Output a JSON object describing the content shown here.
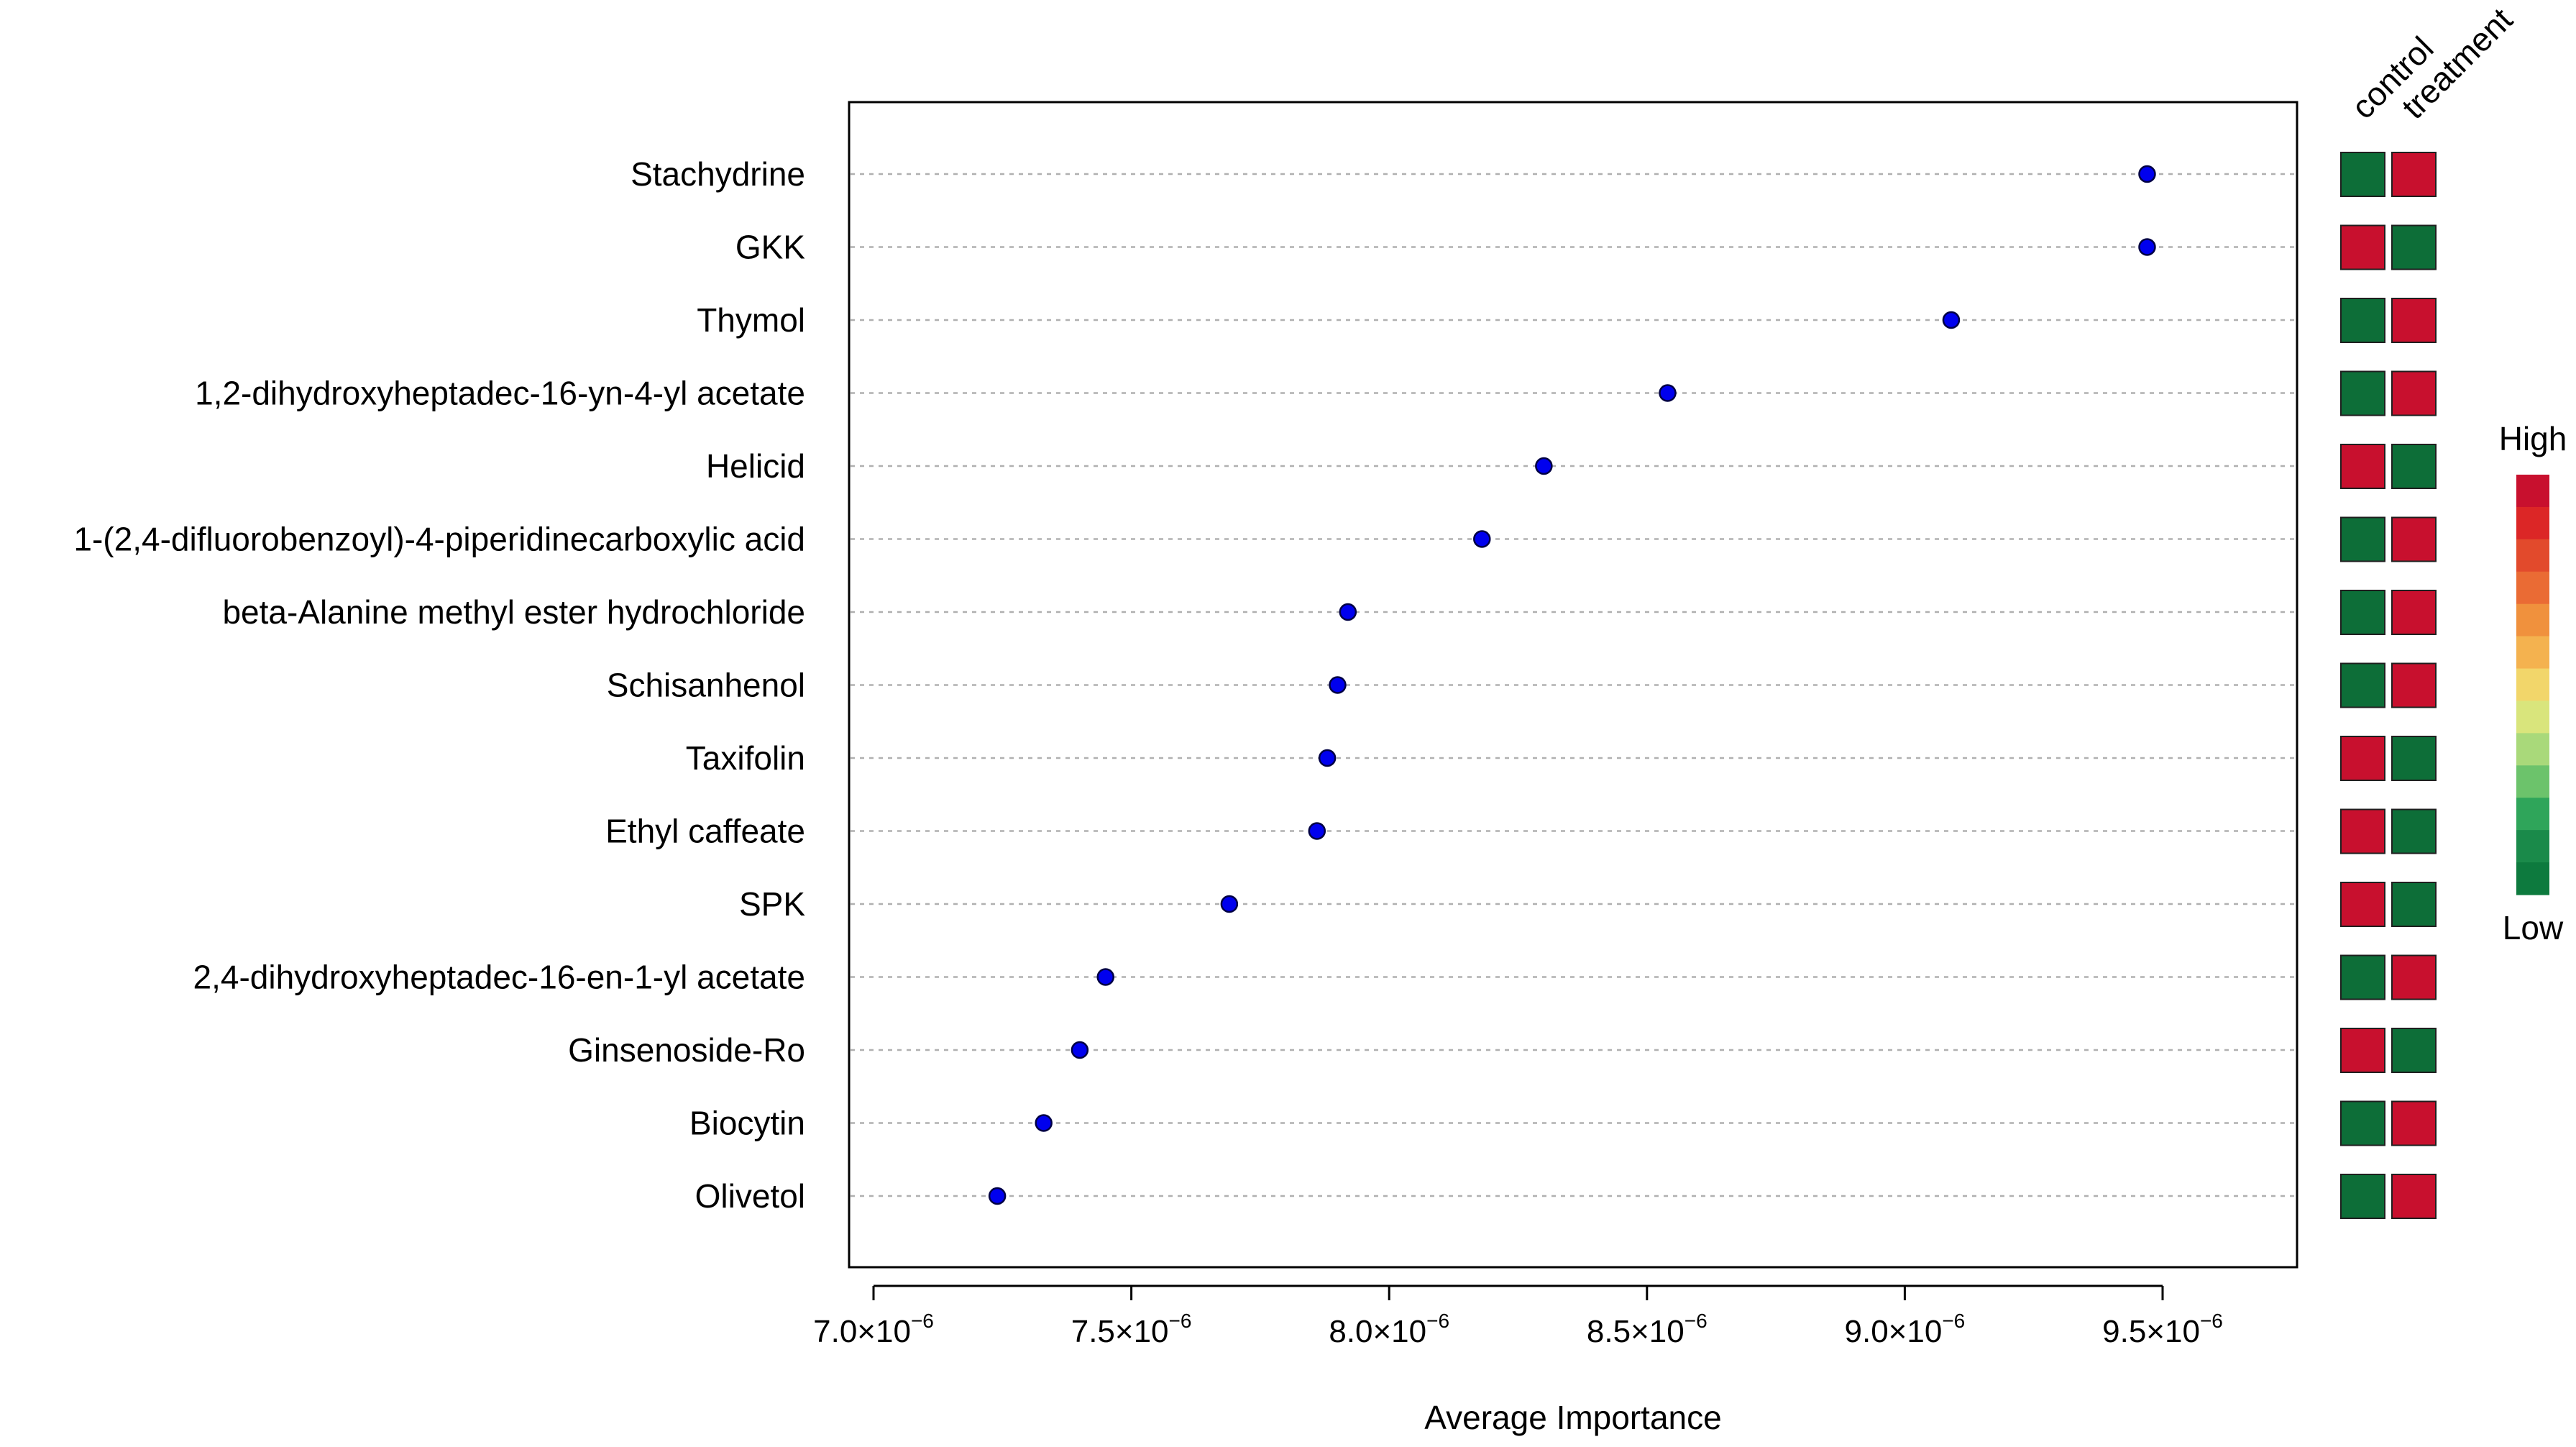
{
  "chart_data": {
    "type": "scatter",
    "title": "",
    "xlabel": "Average Importance",
    "ylabel": "",
    "xlim": [
      6.95e-06,
      9.75e-06
    ],
    "grid": "horizontal-dotted",
    "x_ticks": [
      {
        "value": 7e-06,
        "mantissa": "7.0×10",
        "exponent": "−6"
      },
      {
        "value": 7.5e-06,
        "mantissa": "7.5×10",
        "exponent": "−6"
      },
      {
        "value": 8e-06,
        "mantissa": "8.0×10",
        "exponent": "−6"
      },
      {
        "value": 8.5e-06,
        "mantissa": "8.5×10",
        "exponent": "−6"
      },
      {
        "value": 9e-06,
        "mantissa": "9.0×10",
        "exponent": "−6"
      },
      {
        "value": 9.5e-06,
        "mantissa": "9.5×10",
        "exponent": "−6"
      }
    ],
    "points": [
      {
        "name": "Stachydrine",
        "value": 9.47e-06,
        "control": "low",
        "treatment": "high"
      },
      {
        "name": "GKK",
        "value": 9.47e-06,
        "control": "high",
        "treatment": "low"
      },
      {
        "name": "Thymol",
        "value": 9.09e-06,
        "control": "low",
        "treatment": "high"
      },
      {
        "name": "1,2-dihydroxyheptadec-16-yn-4-yl acetate",
        "value": 8.54e-06,
        "control": "low",
        "treatment": "high"
      },
      {
        "name": "Helicid",
        "value": 8.3e-06,
        "control": "high",
        "treatment": "low"
      },
      {
        "name": "1-(2,4-difluorobenzoyl)-4-piperidinecarboxylic acid",
        "value": 8.18e-06,
        "control": "low",
        "treatment": "high"
      },
      {
        "name": "beta-Alanine methyl ester hydrochloride",
        "value": 7.92e-06,
        "control": "low",
        "treatment": "high"
      },
      {
        "name": "Schisanhenol",
        "value": 7.9e-06,
        "control": "low",
        "treatment": "high"
      },
      {
        "name": "Taxifolin",
        "value": 7.88e-06,
        "control": "high",
        "treatment": "low"
      },
      {
        "name": "Ethyl caffeate",
        "value": 7.86e-06,
        "control": "high",
        "treatment": "low"
      },
      {
        "name": "SPK",
        "value": 7.69e-06,
        "control": "high",
        "treatment": "low"
      },
      {
        "name": "2,4-dihydroxyheptadec-16-en-1-yl acetate",
        "value": 7.45e-06,
        "control": "low",
        "treatment": "high"
      },
      {
        "name": "Ginsenoside-Ro",
        "value": 7.4e-06,
        "control": "high",
        "treatment": "low"
      },
      {
        "name": "Biocytin",
        "value": 7.33e-06,
        "control": "low",
        "treatment": "high"
      },
      {
        "name": "Olivetol",
        "value": 7.24e-06,
        "control": "low",
        "treatment": "high"
      }
    ],
    "heatmap_columns": [
      "control",
      "treatment"
    ],
    "legend": {
      "position": "right",
      "high_label": "High",
      "low_label": "Low",
      "gradient": [
        "#c8102e",
        "#dc2626",
        "#e24a2c",
        "#ea6b34",
        "#f0913d",
        "#f4b24f",
        "#f2d66a",
        "#d9e57c",
        "#a9d97a",
        "#6cc36b",
        "#2fa55a",
        "#1a8a4a",
        "#0d7a3e"
      ]
    },
    "colors": {
      "point_fill": "#0000ee",
      "point_stroke": "#000044",
      "high": "#c8102e",
      "low": "#0d6e38",
      "grid": "#b0b0b0"
    }
  }
}
